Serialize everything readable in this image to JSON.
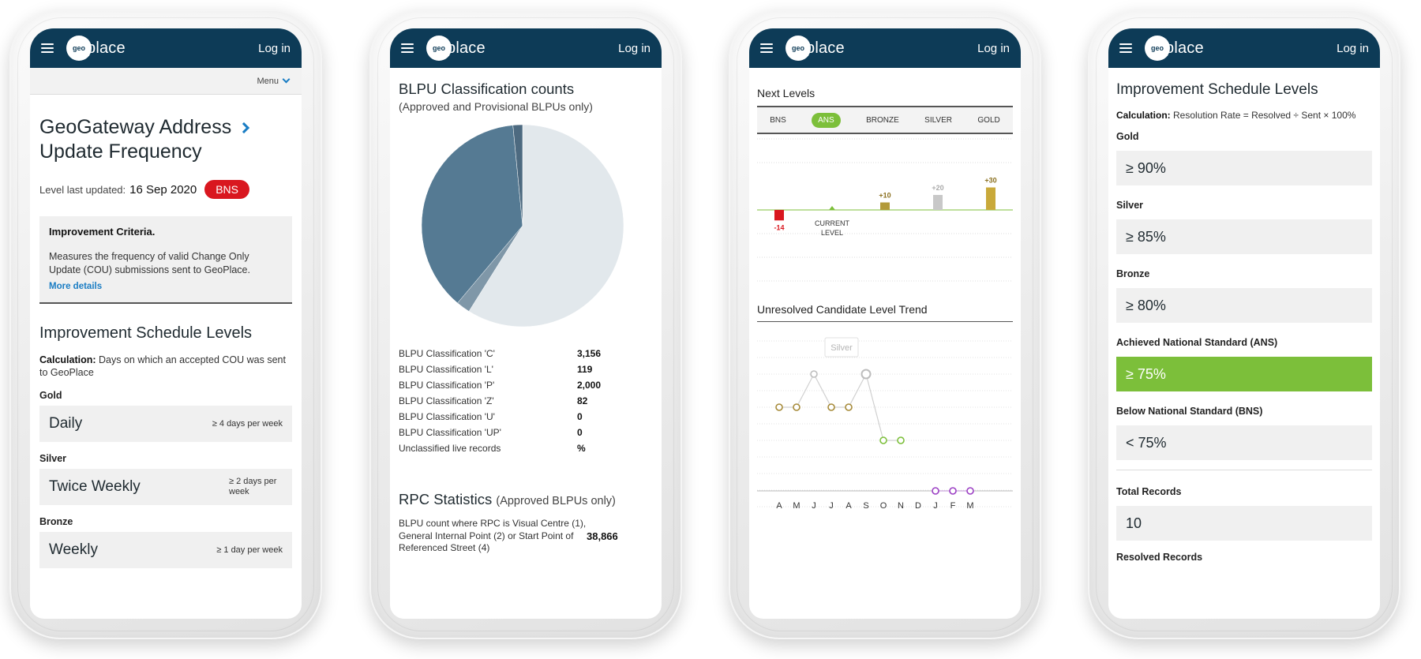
{
  "header": {
    "logo_small": "geo",
    "logo_text": "place",
    "login_label": "Log in"
  },
  "phone1": {
    "menu_label": "Menu",
    "title_line1": "GeoGateway Address",
    "title_line2": "Update Frequency",
    "level_updated_label": "Level last updated:",
    "level_updated_date": "16 Sep 2020",
    "level_badge": "BNS",
    "criteria_title": "Improvement Criteria.",
    "criteria_text": "Measures the frequency of valid Change Only Update (COU) submissions sent to GeoPlace.",
    "criteria_link": "More details",
    "schedule_title": "Improvement Schedule Levels",
    "calc_label": "Calculation:",
    "calc_text": "Days on which an accepted COU was sent to GeoPlace",
    "levels": [
      {
        "name": "Gold",
        "value": "Daily",
        "note": "≥ 4 days per week"
      },
      {
        "name": "Silver",
        "value": "Twice Weekly",
        "note": "≥ 2 days per week"
      },
      {
        "name": "Bronze",
        "value": "Weekly",
        "note": "≥ 1 day per week"
      }
    ]
  },
  "phone2": {
    "title": "BLPU Classification counts",
    "subtitle": "(Approved and Provisional BLPUs only)",
    "rows": [
      {
        "name": "BLPU Classification 'C'",
        "value": "3,156"
      },
      {
        "name": "BLPU Classification 'L'",
        "value": "119"
      },
      {
        "name": "BLPU Classification 'P'",
        "value": "2,000"
      },
      {
        "name": "BLPU Classification 'Z'",
        "value": "82"
      },
      {
        "name": "BLPU Classification 'U'",
        "value": "0"
      },
      {
        "name": "BLPU Classification 'UP'",
        "value": "0"
      },
      {
        "name": "Unclassified live records",
        "value": "%"
      }
    ],
    "rpc_title": "RPC Statistics",
    "rpc_sub": "(Approved BLPUs only)",
    "rpc_text": "BLPU count where RPC is Visual Centre (1), General Internal Point (2) or Start Point of Referenced Street (4)",
    "rpc_value": "38,866"
  },
  "phone3": {
    "next_levels_title": "Next Levels",
    "tabs": [
      "BNS",
      "ANS",
      "BRONZE",
      "SILVER",
      "GOLD"
    ],
    "active_tab": "ANS",
    "trend_title": "Unresolved Candidate Level Trend",
    "tooltip": "Silver"
  },
  "phone4": {
    "title": "Improvement Schedule Levels",
    "calc_label": "Calculation:",
    "calc_text": "Resolution Rate = Resolved ÷ Sent × 100%",
    "levels": [
      {
        "name": "Gold",
        "value": "≥ 90%"
      },
      {
        "name": "Silver",
        "value": "≥ 85%"
      },
      {
        "name": "Bronze",
        "value": "≥ 80%"
      },
      {
        "name": "Achieved National Standard (ANS)",
        "value": "≥ 75%"
      },
      {
        "name": "Below National Standard (BNS)",
        "value": "< 75%"
      }
    ],
    "total_label": "Total Records",
    "total_value": "10",
    "resolved_label": "Resolved Records"
  },
  "chart_data": [
    {
      "type": "pie",
      "title": "BLPU Classification counts",
      "categories": [
        "BLPU Classification 'C'",
        "BLPU Classification 'L'",
        "BLPU Classification 'P'",
        "BLPU Classification 'Z'"
      ],
      "values": [
        3156,
        119,
        2000,
        82
      ],
      "colors": [
        "#e2e8ec",
        "#7f97a8",
        "#557a93",
        "#4d6a80"
      ]
    },
    {
      "type": "bar",
      "title": "Next Levels",
      "categories": [
        "BNS",
        "ANS",
        "BRONZE",
        "SILVER",
        "GOLD"
      ],
      "values": [
        -14,
        0,
        10,
        20,
        30
      ],
      "labels": [
        "-14",
        "CURRENT LEVEL",
        "+10",
        "+20",
        "+30"
      ],
      "colors": [
        "#d9171f",
        "#7cbf3a",
        "#b39a3a",
        "#c8c8c8",
        "#c9a93a"
      ]
    },
    {
      "type": "scatter",
      "title": "Unresolved Candidate Level Trend",
      "categories": [
        "A",
        "M",
        "J",
        "J",
        "A",
        "S",
        "O",
        "N",
        "D",
        "J",
        "F",
        "M"
      ],
      "points": [
        {
          "x": 0,
          "level": "Bronze",
          "color": "#a68a38"
        },
        {
          "x": 1,
          "level": "Bronze",
          "color": "#a68a38"
        },
        {
          "x": 2,
          "level": "Silver",
          "color": "#bdbdbd"
        },
        {
          "x": 3,
          "level": "Bronze",
          "color": "#a68a38"
        },
        {
          "x": 4,
          "level": "Bronze",
          "color": "#a68a38"
        },
        {
          "x": 5,
          "level": "Silver",
          "color": "#bdbdbd"
        },
        {
          "x": 6,
          "level": "ANS",
          "color": "#7cbf3a"
        },
        {
          "x": 7,
          "level": "ANS",
          "color": "#7cbf3a"
        },
        {
          "x": 9,
          "level": "BNS",
          "color": "#9b3fc4"
        },
        {
          "x": 10,
          "level": "BNS",
          "color": "#9b3fc4"
        },
        {
          "x": 11,
          "level": "BNS",
          "color": "#9b3fc4"
        }
      ],
      "levels": [
        "Gold",
        "Silver",
        "Bronze",
        "ANS",
        "BNS"
      ]
    }
  ]
}
